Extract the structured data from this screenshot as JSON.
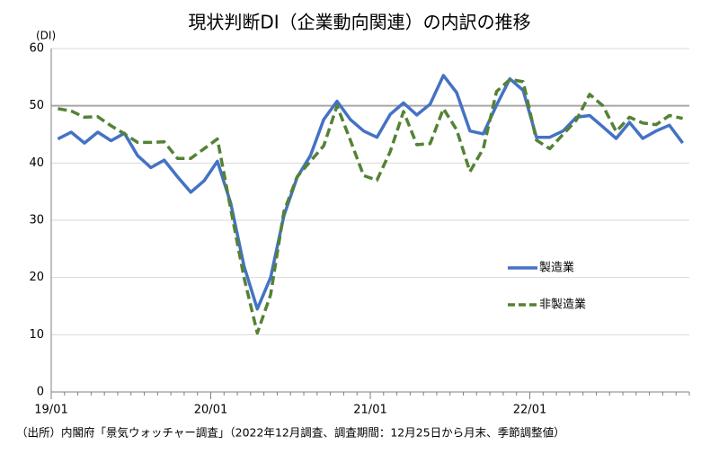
{
  "chart_data": {
    "type": "line",
    "title": "現状判断DI（企業動向関連）の内訳の推移",
    "y_axis_label": "(DI)",
    "source": "（出所）内閣府「景気ウォッチャー調査」（2022年12月調査、調査期間：12月25日から月末、季節調整値）",
    "categories": [
      "19/01",
      null,
      null,
      null,
      null,
      null,
      null,
      null,
      null,
      null,
      null,
      null,
      "20/01",
      null,
      null,
      null,
      null,
      null,
      null,
      null,
      null,
      null,
      null,
      null,
      "21/01",
      null,
      null,
      null,
      null,
      null,
      null,
      null,
      null,
      null,
      null,
      null,
      "22/01",
      null,
      null,
      null,
      null,
      null,
      null,
      null,
      null,
      null,
      null,
      null
    ],
    "series": [
      {
        "name": "製造業",
        "color": "#4472c4",
        "dash": false,
        "values": [
          44.2,
          45.4,
          43.5,
          45.4,
          43.9,
          45.2,
          41.3,
          39.2,
          40.5,
          37.6,
          34.9,
          36.9,
          40.3,
          33.0,
          22.0,
          14.5,
          20.0,
          30.8,
          37.5,
          41.3,
          47.6,
          50.8,
          47.6,
          45.6,
          44.5,
          48.5,
          50.5,
          48.4,
          50.3,
          55.3,
          52.3,
          45.6,
          45.1,
          50.1,
          54.7,
          52.7,
          44.5,
          44.5,
          45.6,
          48.0,
          48.3,
          46.3,
          44.3,
          47.1,
          44.3,
          45.6,
          46.6,
          43.5
        ]
      },
      {
        "name": "非製造業",
        "color": "#548235",
        "dash": true,
        "values": [
          49.5,
          49.1,
          48.0,
          48.1,
          46.5,
          45.1,
          43.6,
          43.6,
          43.7,
          40.8,
          40.8,
          42.5,
          44.2,
          32.0,
          20.0,
          10.3,
          17.0,
          31.5,
          37.6,
          40.3,
          43.0,
          50.0,
          44.0,
          37.8,
          37.0,
          42.0,
          49.0,
          43.2,
          43.4,
          49.5,
          45.8,
          38.5,
          42.5,
          52.5,
          54.6,
          54.2,
          44.0,
          42.5,
          45.0,
          47.5,
          52.0,
          50.0,
          45.5,
          48.0,
          47.0,
          46.7,
          48.3,
          47.8
        ]
      }
    ],
    "ylim": [
      0,
      60
    ],
    "yticks": [
      0,
      10,
      20,
      30,
      40,
      50,
      60
    ],
    "reference_line": 50,
    "grid": true
  }
}
